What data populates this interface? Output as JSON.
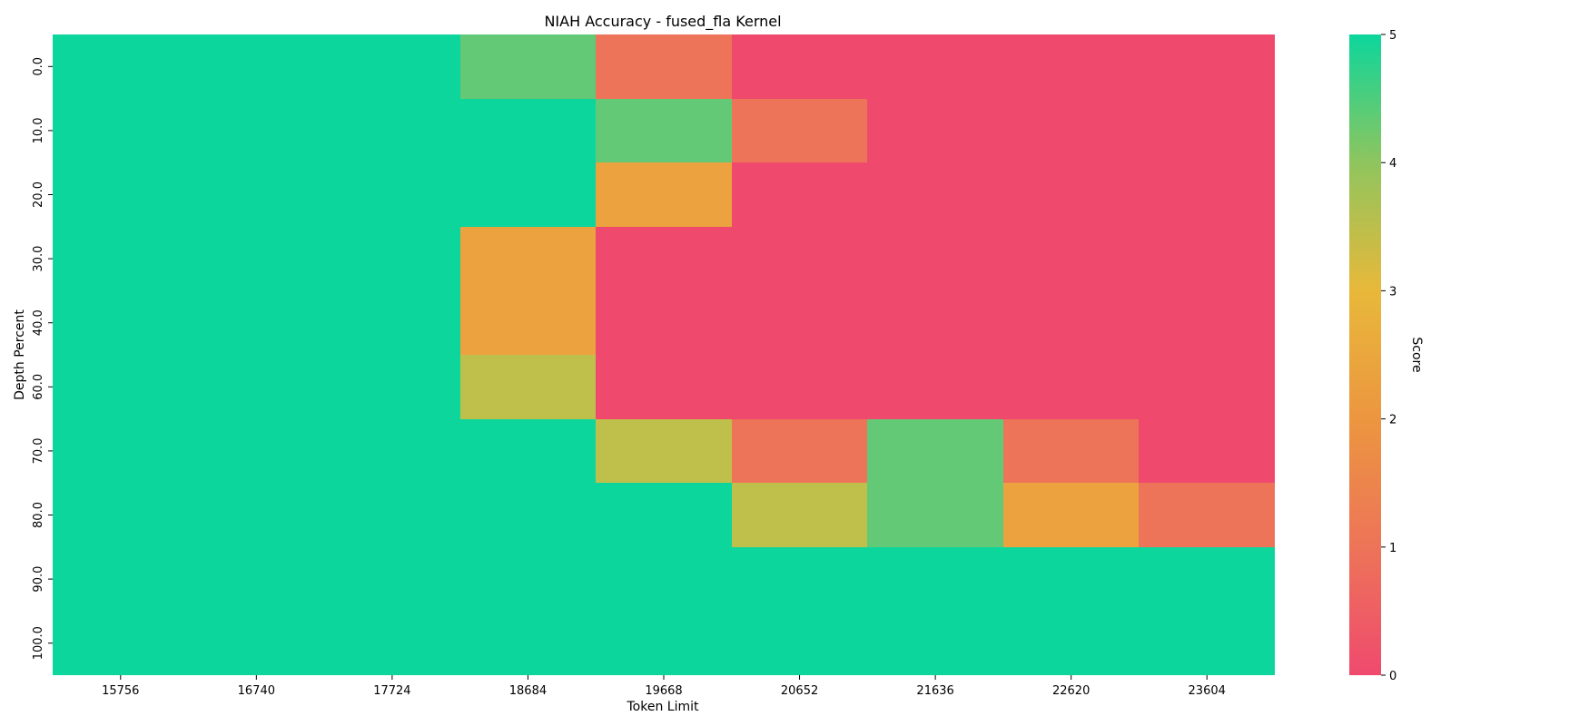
{
  "chart_data": {
    "type": "heatmap",
    "title": "NIAH Accuracy - fused_fla Kernel",
    "xlabel": "Token Limit",
    "ylabel": "Depth Percent",
    "x_categories": [
      "15756",
      "16740",
      "17724",
      "18684",
      "19668",
      "20652",
      "21636",
      "22620",
      "23604"
    ],
    "y_categories": [
      "0.0",
      "10.0",
      "20.0",
      "30.0",
      "40.0",
      "60.0",
      "70.0",
      "80.0",
      "90.0",
      "100.0"
    ],
    "values": [
      [
        5,
        5,
        5,
        4,
        1,
        0,
        0,
        0,
        0
      ],
      [
        5,
        5,
        5,
        5,
        4,
        1,
        0,
        0,
        0
      ],
      [
        5,
        5,
        5,
        5,
        2,
        0,
        0,
        0,
        0
      ],
      [
        5,
        5,
        5,
        2,
        0,
        0,
        0,
        0,
        0
      ],
      [
        5,
        5,
        5,
        2,
        0,
        0,
        0,
        0,
        0
      ],
      [
        5,
        5,
        5,
        3,
        0,
        0,
        0,
        0,
        0
      ],
      [
        5,
        5,
        5,
        5,
        3,
        1,
        4,
        1,
        0
      ],
      [
        5,
        5,
        5,
        5,
        5,
        3,
        4,
        2,
        1
      ],
      [
        5,
        5,
        5,
        5,
        5,
        5,
        5,
        5,
        5
      ],
      [
        5,
        5,
        5,
        5,
        5,
        5,
        5,
        5,
        5
      ]
    ],
    "colorbar": {
      "label": "Score",
      "min": 0,
      "max": 5,
      "ticks": [
        "0",
        "1",
        "2",
        "3",
        "4",
        "5"
      ],
      "colors": [
        "#ef4a6e",
        "#ed7458",
        "#eca23e",
        "#bfc04b",
        "#64c976",
        "#0cd69c"
      ]
    },
    "grid": false,
    "legend": "colorbar-right"
  }
}
